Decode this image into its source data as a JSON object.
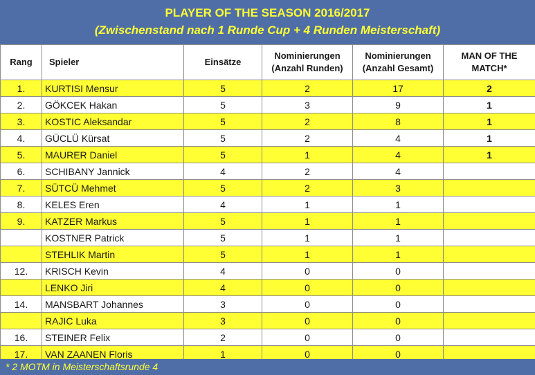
{
  "title": "PLAYER OF THE SEASON 2016/2017",
  "subtitle": "(Zwischenstand nach 1 Runde Cup + 4 Runden Meisterschaft)",
  "headers": {
    "rang": "Rang",
    "spieler": "Spieler",
    "einsaetze": "Einsätze",
    "nom_runden_1": "Nominierungen",
    "nom_runden_2": "(Anzahl Runden)",
    "nom_gesamt_1": "Nominierungen",
    "nom_gesamt_2": "(Anzahl Gesamt)",
    "motm_1": "MAN OF THE",
    "motm_2": "MATCH*"
  },
  "rows": [
    {
      "rang": "1.",
      "spieler": "KURTISI Mensur",
      "einsaetze": "5",
      "runden": "2",
      "gesamt": "17",
      "motm": "2",
      "highlight": true
    },
    {
      "rang": "2.",
      "spieler": "GÖKCEK Hakan",
      "einsaetze": "5",
      "runden": "3",
      "gesamt": "9",
      "motm": "1",
      "highlight": false
    },
    {
      "rang": "3.",
      "spieler": "KOSTIC Aleksandar",
      "einsaetze": "5",
      "runden": "2",
      "gesamt": "8",
      "motm": "1",
      "highlight": true
    },
    {
      "rang": "4.",
      "spieler": "GÜCLÜ Kürsat",
      "einsaetze": "5",
      "runden": "2",
      "gesamt": "4",
      "motm": "1",
      "highlight": false
    },
    {
      "rang": "5.",
      "spieler": "MAURER Daniel",
      "einsaetze": "5",
      "runden": "1",
      "gesamt": "4",
      "motm": "1",
      "highlight": true
    },
    {
      "rang": "6.",
      "spieler": "SCHIBANY Jannick",
      "einsaetze": "4",
      "runden": "2",
      "gesamt": "4",
      "motm": "",
      "highlight": false
    },
    {
      "rang": "7.",
      "spieler": "SÜTCÜ Mehmet",
      "einsaetze": "5",
      "runden": "2",
      "gesamt": "3",
      "motm": "",
      "highlight": true
    },
    {
      "rang": "8.",
      "spieler": "KELES Eren",
      "einsaetze": "4",
      "runden": "1",
      "gesamt": "1",
      "motm": "",
      "highlight": false
    },
    {
      "rang": "9.",
      "spieler": "KATZER Markus",
      "einsaetze": "5",
      "runden": "1",
      "gesamt": "1",
      "motm": "",
      "highlight": true
    },
    {
      "rang": "",
      "spieler": "KOSTNER Patrick",
      "einsaetze": "5",
      "runden": "1",
      "gesamt": "1",
      "motm": "",
      "highlight": false
    },
    {
      "rang": "",
      "spieler": "STEHLIK Martin",
      "einsaetze": "5",
      "runden": "1",
      "gesamt": "1",
      "motm": "",
      "highlight": true
    },
    {
      "rang": "12.",
      "spieler": "KRISCH Kevin",
      "einsaetze": "4",
      "runden": "0",
      "gesamt": "0",
      "motm": "",
      "highlight": false
    },
    {
      "rang": "",
      "spieler": "LENKO Jiri",
      "einsaetze": "4",
      "runden": "0",
      "gesamt": "0",
      "motm": "",
      "highlight": true
    },
    {
      "rang": "14.",
      "spieler": "MANSBART Johannes",
      "einsaetze": "3",
      "runden": "0",
      "gesamt": "0",
      "motm": "",
      "highlight": false
    },
    {
      "rang": "",
      "spieler": "RAJIC Luka",
      "einsaetze": "3",
      "runden": "0",
      "gesamt": "0",
      "motm": "",
      "highlight": true
    },
    {
      "rang": "16.",
      "spieler": "STEINER Felix",
      "einsaetze": "2",
      "runden": "0",
      "gesamt": "0",
      "motm": "",
      "highlight": false
    },
    {
      "rang": "17.",
      "spieler": "VAN ZAANEN Floris",
      "einsaetze": "1",
      "runden": "0",
      "gesamt": "0",
      "motm": "",
      "highlight": true
    }
  ],
  "footnote": "* 2 MOTM in Meisterschaftsrunde 4",
  "colors": {
    "band": "#4f6ea8",
    "band_text": "#ffff33",
    "row_highlight": "#ffff33"
  }
}
